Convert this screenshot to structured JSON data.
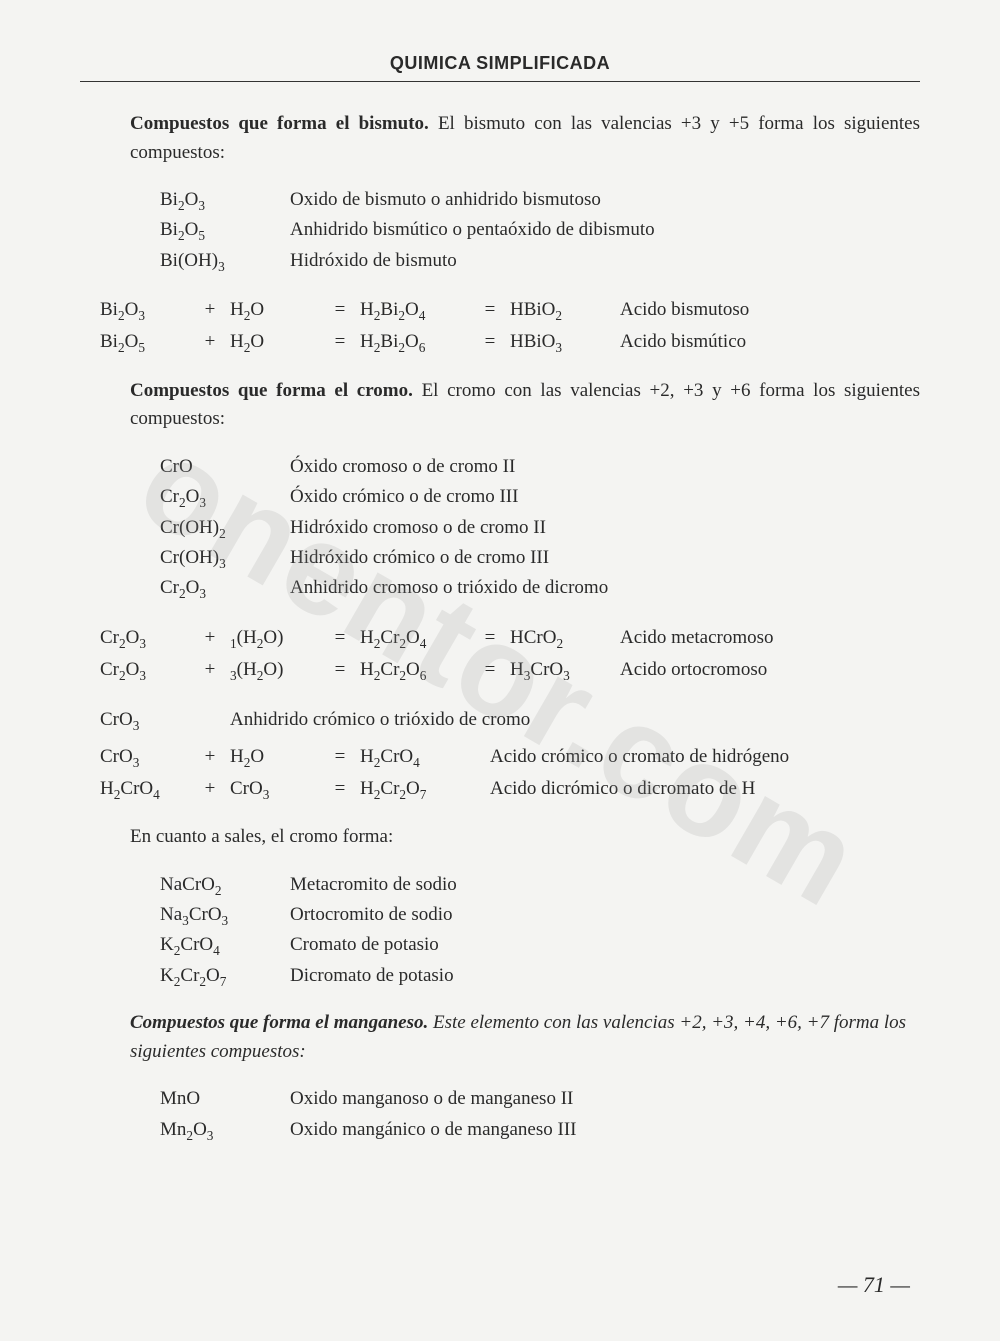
{
  "header": "QUIMICA SIMPLIFICADA",
  "watermark": "onentor.com",
  "page_number": "— 71 —",
  "bismuth": {
    "heading": "Compuestos que forma el bismuto.",
    "text": "El bismuto con las valencias +3 y +5 forma los siguientes compuestos:",
    "compounds": [
      {
        "formula_html": "Bi<sub>2</sub>O<sub>3</sub>",
        "name": "Oxido de bismuto o anhidrido bismutoso"
      },
      {
        "formula_html": "Bi<sub>2</sub>O<sub>5</sub>",
        "name": "Anhidrido bismútico o pentaóxido de dibismuto"
      },
      {
        "formula_html": "Bi(OH)<sub>3</sub>",
        "name": "Hidróxido de bismuto"
      }
    ],
    "equations": [
      {
        "a": "Bi<sub>2</sub>O<sub>3</sub>",
        "op1": "+",
        "b": "H<sub>2</sub>O",
        "op2": "=",
        "c": "H<sub>2</sub>Bi<sub>2</sub>O<sub>4</sub>",
        "op3": "=",
        "d": "HBiO<sub>2</sub>",
        "label": "Acido bismutoso"
      },
      {
        "a": "Bi<sub>2</sub>O<sub>5</sub>",
        "op1": "+",
        "b": "H<sub>2</sub>O",
        "op2": "=",
        "c": "H<sub>2</sub>Bi<sub>2</sub>O<sub>6</sub>",
        "op3": "=",
        "d": "HBiO<sub>3</sub>",
        "label": "Acido bismútico"
      }
    ]
  },
  "chromium": {
    "heading": "Compuestos que forma el cromo.",
    "text": "El cromo con las valencias +2, +3 y +6 forma los siguientes compuestos:",
    "compounds": [
      {
        "formula_html": "CrO",
        "name": "Óxido cromoso o de cromo  II"
      },
      {
        "formula_html": "Cr<sub>2</sub>O<sub>3</sub>",
        "name": "Óxido crómico o de cromo  III"
      },
      {
        "formula_html": "Cr(OH)<sub>2</sub>",
        "name": "Hidróxido cromoso o de cromo  II"
      },
      {
        "formula_html": "Cr(OH)<sub>3</sub>",
        "name": "Hidróxido crómico o de cromo  III"
      },
      {
        "formula_html": "Cr<sub>2</sub>O<sub>3</sub>",
        "name": "Anhidrido cromoso o trióxido de dicromo"
      }
    ],
    "equations1": [
      {
        "a": "Cr<sub>2</sub>O<sub>3</sub>",
        "op1": "+",
        "b": "<span class='presub'>1</span>(H<sub>2</sub>O)",
        "op2": "=",
        "c": "H<sub>2</sub>Cr<sub>2</sub>O<sub>4</sub>",
        "op3": "=",
        "d": "HCrO<sub>2</sub>",
        "label": "Acido metacromoso"
      },
      {
        "a": "Cr<sub>2</sub>O<sub>3</sub>",
        "op1": "+",
        "b": "<span class='presub'>3</span>(H<sub>2</sub>O)",
        "op2": "=",
        "c": "H<sub>2</sub>Cr<sub>2</sub>O<sub>6</sub>",
        "op3": "=",
        "d": "H<sub>3</sub>CrO<sub>3</sub>",
        "label": "Acido ortocromoso"
      }
    ],
    "anhydride_row": {
      "formula_html": "CrO<sub>3</sub>",
      "name": "Anhidrido crómico o trióxido de cromo"
    },
    "equations2": [
      {
        "a": "CrO<sub>3</sub>",
        "op1": "+",
        "b": "H<sub>2</sub>O",
        "op2": "=",
        "c": "H<sub>2</sub>CrO<sub>4</sub>",
        "label": "Acido crómico o cromato de hidrógeno"
      },
      {
        "a": "H<sub>2</sub>CrO<sub>4</sub>",
        "op1": "+",
        "b": "CrO<sub>3</sub>",
        "op2": "=",
        "c": "H<sub>2</sub>Cr<sub>2</sub>O<sub>7</sub>",
        "label": "Acido dicrómico o dicromato de H"
      }
    ],
    "salts_intro": "En cuanto a sales, el cromo forma:",
    "salts": [
      {
        "formula_html": "NaCrO<sub>2</sub>",
        "name": "Metacromito de sodio"
      },
      {
        "formula_html": "Na<sub>3</sub>CrO<sub>3</sub>",
        "name": "Ortocromito de sodio"
      },
      {
        "formula_html": "K<sub>2</sub>CrO<sub>4</sub>",
        "name": "Cromato de potasio"
      },
      {
        "formula_html": "K<sub>2</sub>Cr<sub>2</sub>O<sub>7</sub>",
        "name": "Dicromato de potasio"
      }
    ]
  },
  "manganese": {
    "heading": "Compuestos que forma el manganeso.",
    "text": "Este elemento con las valencias  +2, +3, +4, +6, +7  forma los siguientes compuestos:",
    "compounds": [
      {
        "formula_html": "MnO",
        "name": "Oxido manganoso o de manganeso  II"
      },
      {
        "formula_html": "Mn<sub>2</sub>O<sub>3</sub>",
        "name": "Oxido mangánico o de manganeso  III"
      }
    ]
  }
}
